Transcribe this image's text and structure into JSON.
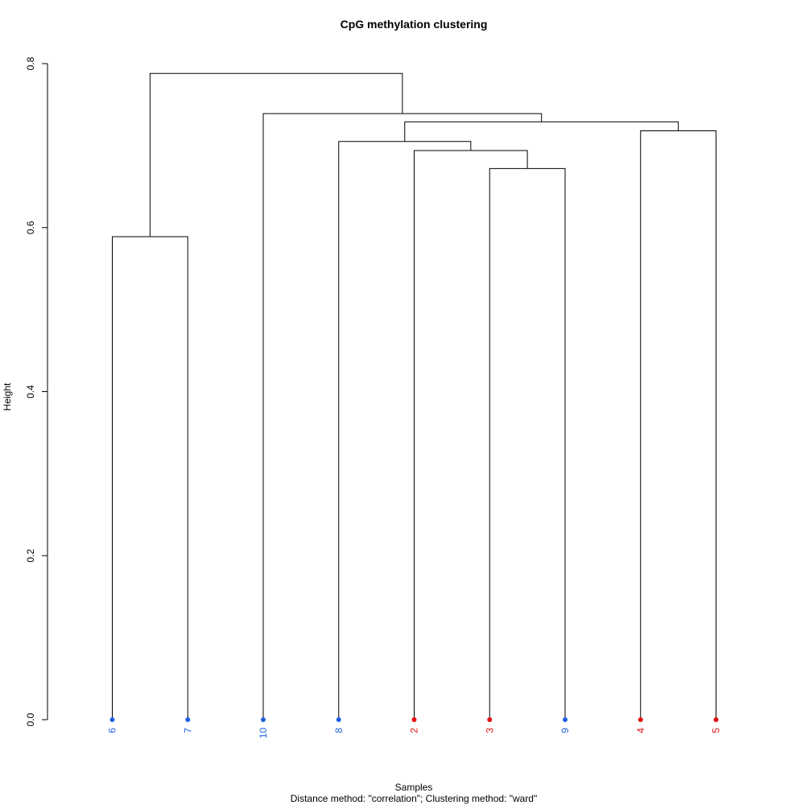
{
  "chart_data": {
    "type": "dendrogram",
    "title": "CpG methylation clustering",
    "xlabel": "Samples",
    "subtitle": "Distance method: \"correlation\"; Clustering method: \"ward\"",
    "ylabel": "Height",
    "ylim": [
      0,
      0.8
    ],
    "yticks": [
      "0.0",
      "0.2",
      "0.4",
      "0.6",
      "0.8"
    ],
    "grid": false,
    "group_colors": {
      "blue": "#1f5fe0",
      "red": "#e01010"
    },
    "leaves": [
      {
        "label": "6",
        "group": "blue"
      },
      {
        "label": "7",
        "group": "blue"
      },
      {
        "label": "10",
        "group": "blue"
      },
      {
        "label": "8",
        "group": "blue"
      },
      {
        "label": "2",
        "group": "red"
      },
      {
        "label": "3",
        "group": "red"
      },
      {
        "label": "9",
        "group": "blue"
      },
      {
        "label": "4",
        "group": "red"
      },
      {
        "label": "5",
        "group": "red"
      }
    ],
    "merges": [
      {
        "id": "m1",
        "left": "6",
        "right": "7",
        "height": 0.589
      },
      {
        "id": "m2",
        "left": "3",
        "right": "9",
        "height": 0.672
      },
      {
        "id": "m3",
        "left": "2",
        "right": "m2",
        "height": 0.694
      },
      {
        "id": "m4",
        "left": "8",
        "right": "m3",
        "height": 0.705
      },
      {
        "id": "m5",
        "left": "4",
        "right": "5",
        "height": 0.718
      },
      {
        "id": "m6",
        "left": "m4",
        "right": "m5",
        "height": 0.729
      },
      {
        "id": "m7",
        "left": "10",
        "right": "m6",
        "height": 0.739
      },
      {
        "id": "m8",
        "left": "m1",
        "right": "m7",
        "height": 0.788
      }
    ]
  }
}
